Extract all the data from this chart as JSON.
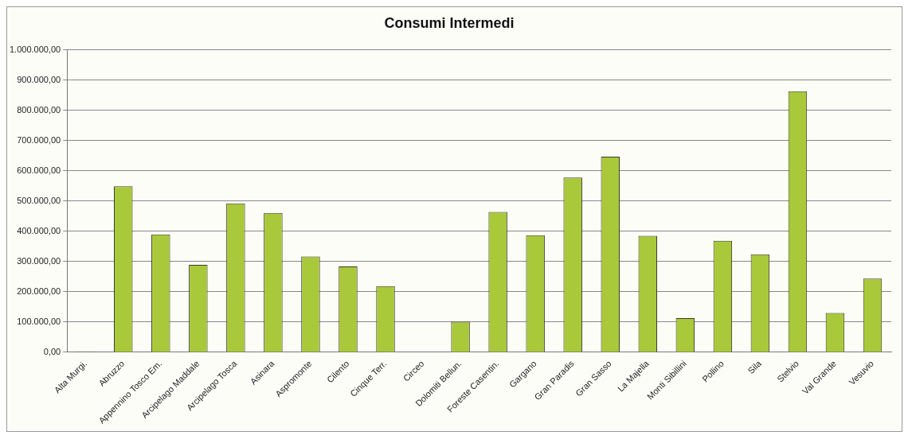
{
  "chart_data": {
    "type": "bar",
    "title": "Consumi Intermedi",
    "categories": [
      "Alta Murgi.",
      "Abruzzo",
      "Appennino Tosco Em.",
      "Arcipelago Maddale",
      "Arcipelago Tosca",
      "Asinara",
      "Aspromonte",
      "Cilento",
      "Cinque Terr.",
      "Circeo",
      "Dolomiti Bellun.",
      "Foreste Casentin.",
      "Gargano",
      "Gran Paradis",
      "Gran Sasso",
      "La Majella",
      "Monti Sibillini",
      "Pollino",
      "Sila",
      "Stelvio",
      "Val Grande",
      "Vesuvio"
    ],
    "values": [
      3000,
      549000,
      390000,
      289000,
      492000,
      461000,
      317000,
      284000,
      219000,
      0,
      101000,
      464000,
      387000,
      578000,
      647000,
      385000,
      113000,
      369000,
      324000,
      863000,
      130000,
      244000
    ],
    "color": "#a9c93a",
    "ylim": [
      0,
      1000000
    ],
    "yticks": [
      {
        "value": 0,
        "label": "0,00"
      },
      {
        "value": 100000,
        "label": "100.000,00"
      },
      {
        "value": 200000,
        "label": "200.000,00"
      },
      {
        "value": 300000,
        "label": "300.000,00"
      },
      {
        "value": 400000,
        "label": "400.000,00"
      },
      {
        "value": 500000,
        "label": "500.000,00"
      },
      {
        "value": 600000,
        "label": "600.000,00"
      },
      {
        "value": 700000,
        "label": "700.000,00"
      },
      {
        "value": 800000,
        "label": "800.000,00"
      },
      {
        "value": 900000,
        "label": "900.000,00"
      },
      {
        "value": 1000000,
        "label": "1.000.000,00"
      }
    ],
    "grid": "y",
    "legend": false
  }
}
